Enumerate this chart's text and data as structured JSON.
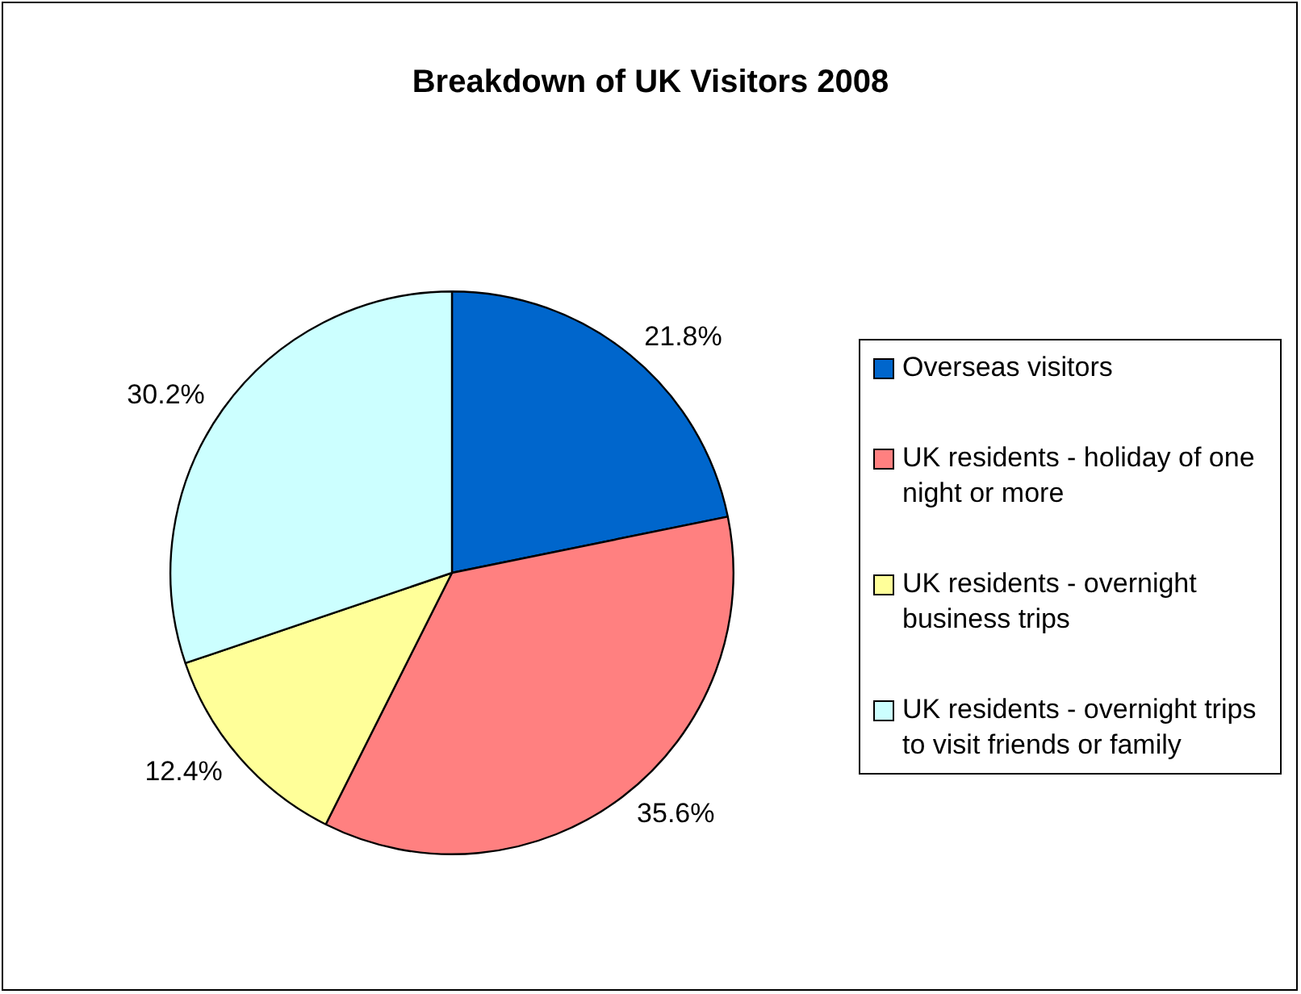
{
  "chart_data": {
    "type": "pie",
    "title": "Breakdown of UK Visitors 2008",
    "categories": [
      "Overseas visitors",
      "UK residents - holiday of one night or more",
      "UK residents - overnight business trips",
      "UK residents - overnight trips to visit friends or family"
    ],
    "values": [
      21.8,
      35.6,
      12.4,
      30.2
    ],
    "value_labels": [
      "21.8%",
      "35.6%",
      "12.4%",
      "30.2%"
    ],
    "colors": [
      "#0066cc",
      "#ff8080",
      "#ffff99",
      "#ccffff"
    ],
    "legend": "right"
  }
}
